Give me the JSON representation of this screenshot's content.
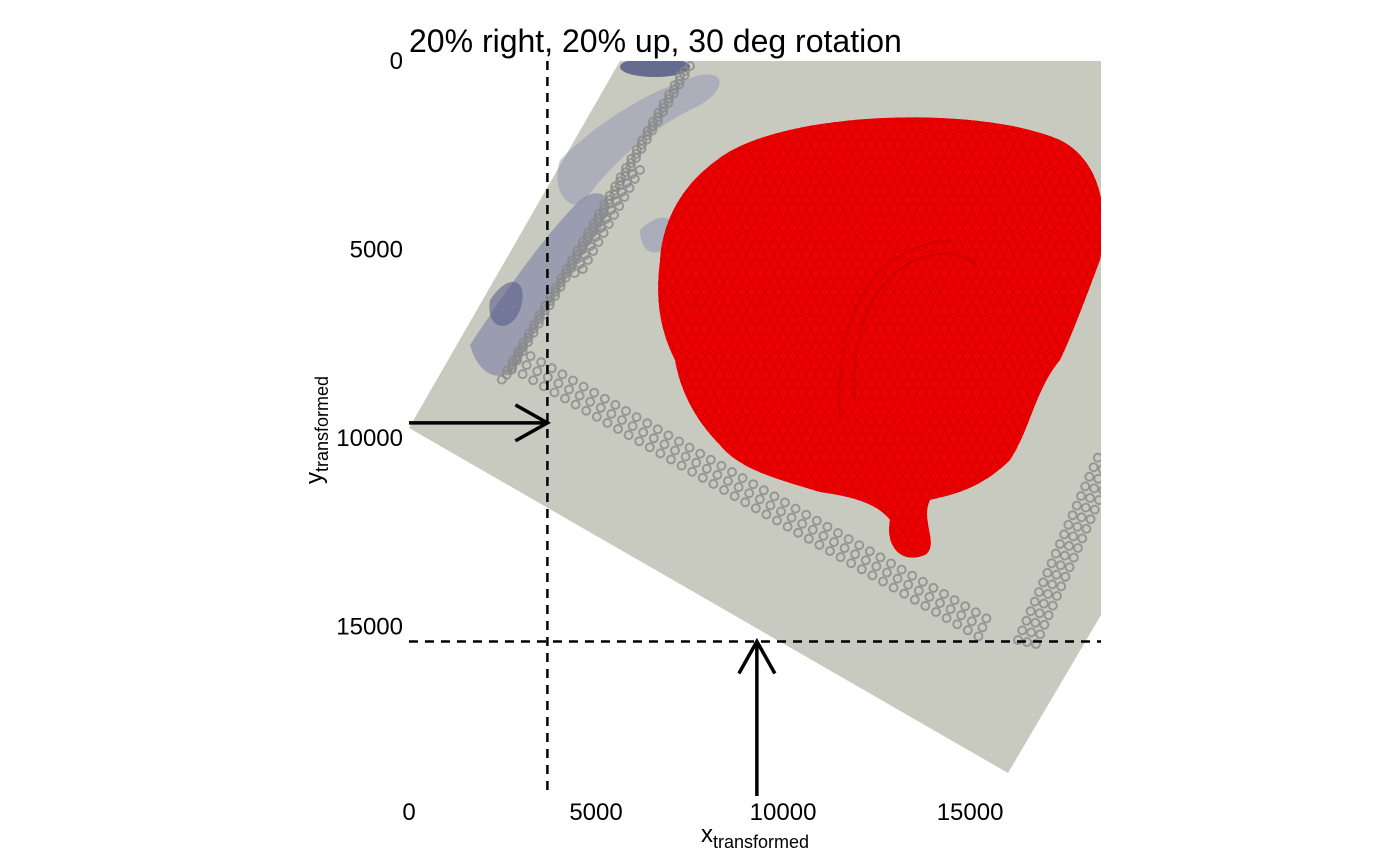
{
  "chart_data": {
    "type": "scatter",
    "title": "20% right, 20% up, 30 deg rotation",
    "xlabel": {
      "main": "x",
      "sub": "transformed"
    },
    "ylabel": {
      "main": "y",
      "sub": "transformed"
    },
    "xlim": [
      0,
      18500
    ],
    "ylim": [
      0,
      19500
    ],
    "y_reversed": true,
    "x_ticks": [
      0,
      5000,
      10000,
      15000
    ],
    "y_ticks": [
      0,
      5000,
      10000,
      15000
    ],
    "x_tick_labels": [
      "0",
      "5000",
      "10000",
      "15000"
    ],
    "y_tick_labels": [
      "0",
      "5000",
      "10000",
      "15000"
    ],
    "grid": false,
    "background_image": {
      "rotation_deg": 30,
      "tissue_color": "#c8c9bf",
      "stain_color": "#5a5f8c"
    },
    "spots": {
      "color": "#ee0000",
      "fiducial_color": "#8a8a8a"
    },
    "reference_lines": {
      "vertical_x": 3700,
      "horizontal_y": 15400,
      "arrow_left_y": 9600,
      "arrow_bottom_x": 9300
    },
    "colors": {
      "line": "#000000",
      "spot": "#ee0000",
      "fiducial": "#8a8a8a"
    }
  }
}
